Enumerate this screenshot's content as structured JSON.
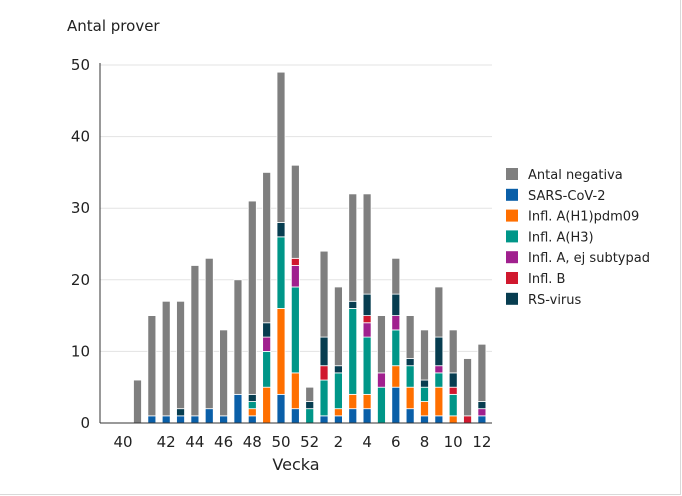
{
  "chart_data": {
    "type": "bar",
    "stacked": true,
    "ylabel": "Antal prover",
    "xlabel": "Vecka",
    "ylim": [
      0,
      50
    ],
    "yticks": [
      0,
      10,
      20,
      30,
      40,
      50
    ],
    "grid": true,
    "legend_position": "right",
    "categories": [
      "40",
      "41",
      "42",
      "43",
      "44",
      "45",
      "46",
      "47",
      "48",
      "49",
      "50",
      "51",
      "52",
      "1",
      "2",
      "3",
      "4",
      "5",
      "6",
      "7",
      "8",
      "9",
      "10",
      "11",
      "12"
    ],
    "tick_labels": [
      "40",
      "42",
      "44",
      "46",
      "48",
      "50",
      "52",
      "2",
      "4",
      "6",
      "8",
      "10",
      "12"
    ],
    "series": [
      {
        "name": "SARS-CoV-2",
        "color": "#0a5fa8",
        "values": [
          0,
          1,
          1,
          1,
          1,
          2,
          1,
          4,
          1,
          0,
          4,
          2,
          0,
          1,
          1,
          2,
          2,
          0,
          5,
          2,
          1,
          1,
          0,
          0,
          1
        ]
      },
      {
        "name": "Infl. A(H1)pdm09",
        "color": "#ff6f00",
        "values": [
          0,
          0,
          0,
          0,
          0,
          0,
          0,
          0,
          1,
          5,
          12,
          5,
          0,
          0,
          1,
          2,
          2,
          0,
          3,
          3,
          2,
          4,
          1,
          0,
          0
        ]
      },
      {
        "name": "Infl. A(H3)",
        "color": "#009688",
        "values": [
          0,
          0,
          0,
          0,
          0,
          0,
          0,
          0,
          1,
          5,
          10,
          12,
          2,
          5,
          5,
          12,
          8,
          5,
          5,
          3,
          2,
          2,
          3,
          0,
          0
        ]
      },
      {
        "name": "Infl. A, ej subtypad",
        "color": "#a0208e",
        "values": [
          0,
          0,
          0,
          0,
          0,
          0,
          0,
          0,
          0,
          2,
          0,
          3,
          0,
          0,
          0,
          0,
          2,
          2,
          2,
          0,
          0,
          1,
          0,
          0,
          1
        ]
      },
      {
        "name": "Infl. B",
        "color": "#d0182e",
        "values": [
          0,
          0,
          0,
          0,
          0,
          0,
          0,
          0,
          0,
          0,
          0,
          1,
          0,
          2,
          0,
          0,
          1,
          0,
          0,
          0,
          0,
          0,
          1,
          1,
          0
        ]
      },
      {
        "name": "RS-virus",
        "color": "#073d50",
        "values": [
          0,
          0,
          0,
          1,
          0,
          0,
          0,
          0,
          1,
          2,
          2,
          0,
          1,
          4,
          1,
          1,
          3,
          0,
          3,
          1,
          1,
          4,
          2,
          0,
          1
        ]
      },
      {
        "name": "Antal negativa",
        "color": "#7f7f7f",
        "values": [
          6,
          14,
          16,
          15,
          21,
          21,
          12,
          16,
          27,
          21,
          21,
          13,
          2,
          12,
          11,
          15,
          14,
          8,
          5,
          6,
          7,
          7,
          6,
          8,
          8
        ]
      }
    ]
  }
}
